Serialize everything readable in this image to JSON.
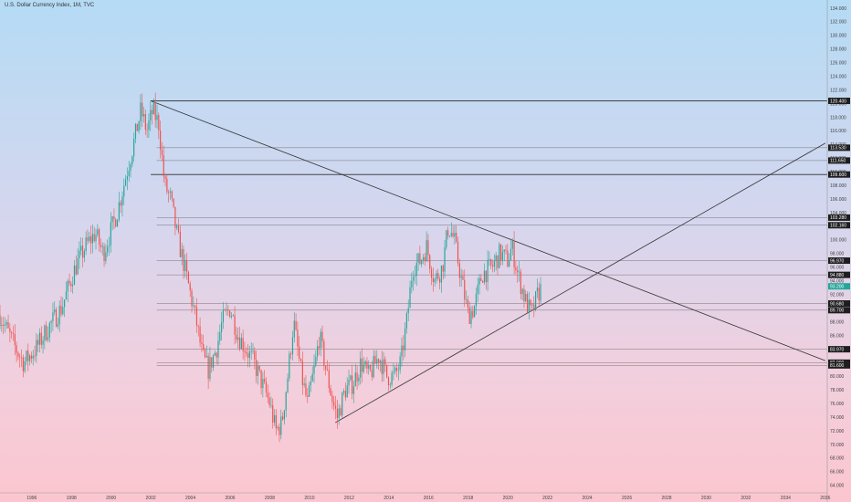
{
  "title": "U.S. Dollar Currency Index, 1M, TVC",
  "colors": {
    "up": "#26a69a",
    "down": "#ef5350",
    "line": "#333333",
    "current": "#26a69a"
  },
  "chart_data": {
    "type": "candlestick",
    "x_ticks": [
      "1996",
      "1998",
      "2000",
      "2002",
      "2004",
      "2006",
      "2008",
      "2010",
      "2012",
      "2014",
      "2016",
      "2018",
      "2020",
      "2022",
      "2024",
      "2026",
      "2028",
      "2030",
      "2032",
      "2034",
      "2036"
    ],
    "y_ticks": [
      "134.000",
      "132.000",
      "130.000",
      "128.000",
      "126.000",
      "124.000",
      "122.000",
      "120.000",
      "118.000",
      "116.000",
      "114.000",
      "112.000",
      "110.000",
      "108.000",
      "106.000",
      "104.000",
      "102.000",
      "100.000",
      "98.000",
      "96.000",
      "94.000",
      "92.000",
      "90.000",
      "88.000",
      "86.000",
      "84.000",
      "82.000",
      "80.000",
      "78.000",
      "76.000",
      "74.000",
      "72.000",
      "70.000",
      "68.000",
      "66.000",
      "64.000"
    ],
    "ylim": [
      62.9,
      135.2
    ],
    "xlim": [
      1994.4,
      2036.1
    ],
    "price_path": [
      [
        1994.4,
        89
      ],
      [
        1995.2,
        84
      ],
      [
        1995.6,
        82
      ],
      [
        1996.2,
        84
      ],
      [
        1996.8,
        87
      ],
      [
        1997.5,
        90
      ],
      [
        1998.2,
        96
      ],
      [
        1998.7,
        99
      ],
      [
        1999.2,
        101
      ],
      [
        1999.6,
        98
      ],
      [
        2000.3,
        104
      ],
      [
        2000.8,
        110
      ],
      [
        2001.2,
        115
      ],
      [
        2001.5,
        119
      ],
      [
        2001.8,
        116
      ],
      [
        2002.1,
        119
      ],
      [
        2002.4,
        117
      ],
      [
        2002.7,
        108
      ],
      [
        2003.0,
        106
      ],
      [
        2003.3,
        101
      ],
      [
        2003.7,
        96
      ],
      [
        2004.0,
        92
      ],
      [
        2004.3,
        88
      ],
      [
        2004.6,
        83
      ],
      [
        2004.9,
        81
      ],
      [
        2005.3,
        84
      ],
      [
        2005.6,
        88
      ],
      [
        2006.0,
        90
      ],
      [
        2006.4,
        86
      ],
      [
        2006.8,
        84
      ],
      [
        2007.2,
        82
      ],
      [
        2007.6,
        79
      ],
      [
        2008.0,
        76
      ],
      [
        2008.3,
        72
      ],
      [
        2008.6,
        73
      ],
      [
        2008.9,
        80
      ],
      [
        2009.2,
        88
      ],
      [
        2009.6,
        80
      ],
      [
        2009.9,
        76
      ],
      [
        2010.3,
        82
      ],
      [
        2010.5,
        86
      ],
      [
        2010.9,
        80
      ],
      [
        2011.2,
        76
      ],
      [
        2011.4,
        74
      ],
      [
        2011.8,
        78
      ],
      [
        2012.2,
        79
      ],
      [
        2012.6,
        82
      ],
      [
        2013.0,
        80
      ],
      [
        2013.5,
        83
      ],
      [
        2013.9,
        80
      ],
      [
        2014.3,
        80
      ],
      [
        2014.6,
        82
      ],
      [
        2014.9,
        88
      ],
      [
        2015.2,
        96
      ],
      [
        2015.6,
        97
      ],
      [
        2015.9,
        99
      ],
      [
        2016.3,
        94
      ],
      [
        2016.7,
        96
      ],
      [
        2017.0,
        102
      ],
      [
        2017.3,
        100
      ],
      [
        2017.6,
        95
      ],
      [
        2018.0,
        89
      ],
      [
        2018.3,
        90
      ],
      [
        2018.7,
        95
      ],
      [
        2019.2,
        96
      ],
      [
        2019.6,
        98
      ],
      [
        2020.0,
        97
      ],
      [
        2020.2,
        99
      ],
      [
        2020.5,
        95
      ],
      [
        2020.9,
        91
      ],
      [
        2021.2,
        89
      ],
      [
        2021.5,
        92
      ],
      [
        2021.7,
        93
      ]
    ],
    "levels": [
      {
        "price": 120.4,
        "label": "120.400",
        "thick": true
      },
      {
        "price": 113.53,
        "label": "113.530",
        "thick": false
      },
      {
        "price": 111.65,
        "label": "111.650",
        "thick": false
      },
      {
        "price": 109.6,
        "label": "109.600",
        "thick": true
      },
      {
        "price": 103.28,
        "label": "103.280",
        "thick": false
      },
      {
        "price": 102.16,
        "label": "102.160",
        "thick": false
      },
      {
        "price": 96.97,
        "label": "96.970",
        "thick": false
      },
      {
        "price": 94.88,
        "label": "94.880",
        "thick": false
      },
      {
        "price": 90.68,
        "label": "90.680",
        "thick": false
      },
      {
        "price": 89.7,
        "label": "89.700",
        "thick": false
      },
      {
        "price": 83.97,
        "label": "83.970",
        "thick": false
      },
      {
        "price": 82.0,
        "label": "82.000",
        "thick": false
      },
      {
        "price": 81.6,
        "label": "81.600",
        "thick": false
      }
    ],
    "current_price": {
      "price": 93.2,
      "label": "93.200"
    },
    "trendlines": [
      {
        "from": [
          2002.0,
          120.4
        ],
        "to": [
          2036.0,
          82.3
        ]
      },
      {
        "from": [
          2011.3,
          73.2
        ],
        "to": [
          2036.0,
          114.2
        ]
      }
    ]
  }
}
